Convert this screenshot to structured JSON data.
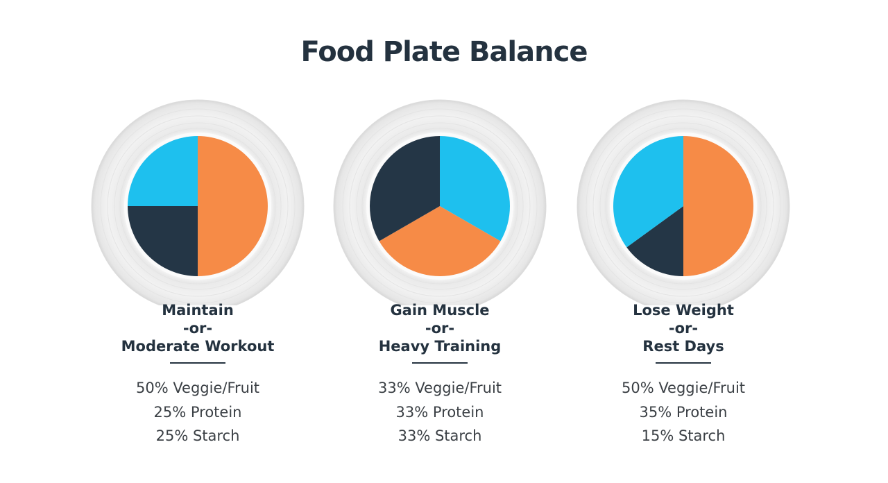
{
  "colors": {
    "veggie": "#F68B47",
    "protein": "#1EC0EE",
    "starch": "#243646",
    "title": "#24323f"
  },
  "chart_data": {
    "type": "pie",
    "title": "Food Plate Balance",
    "plates": [
      {
        "label": [
          "Maintain",
          "-or-",
          "Moderate Workout"
        ],
        "slices": [
          {
            "name": "Veggie/Fruit",
            "value": 50,
            "key": "veggie"
          },
          {
            "name": "Starch",
            "value": 25,
            "key": "starch"
          },
          {
            "name": "Protein",
            "value": 25,
            "key": "protein"
          }
        ],
        "stats": [
          "50% Veggie/Fruit",
          "25% Protein",
          "25% Starch"
        ]
      },
      {
        "label": [
          "Gain Muscle",
          "-or-",
          "Heavy Training"
        ],
        "slices": [
          {
            "name": "Protein",
            "value": 33,
            "key": "protein"
          },
          {
            "name": "Veggie/Fruit",
            "value": 33,
            "key": "veggie"
          },
          {
            "name": "Starch",
            "value": 33,
            "key": "starch"
          }
        ],
        "stats": [
          "33% Veggie/Fruit",
          "33% Protein",
          "33% Starch"
        ]
      },
      {
        "label": [
          "Lose Weight",
          "-or-",
          "Rest Days"
        ],
        "slices": [
          {
            "name": "Veggie/Fruit",
            "value": 50,
            "key": "veggie"
          },
          {
            "name": "Starch",
            "value": 15,
            "key": "starch"
          },
          {
            "name": "Protein",
            "value": 35,
            "key": "protein"
          }
        ],
        "stats": [
          "50% Veggie/Fruit",
          "35% Protein",
          "15% Starch"
        ]
      }
    ]
  }
}
